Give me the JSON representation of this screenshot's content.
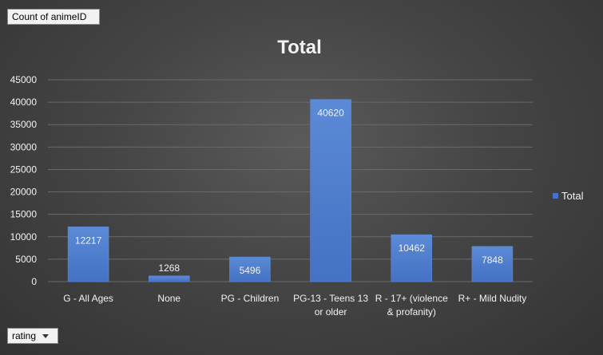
{
  "pivot": {
    "value_field": "Count of animeID",
    "axis_field": "rating"
  },
  "chart_data": {
    "type": "bar",
    "title": "Total",
    "xlabel": "",
    "ylabel": "",
    "ylim": [
      0,
      45000
    ],
    "yticks": [
      0,
      5000,
      10000,
      15000,
      20000,
      25000,
      30000,
      35000,
      40000,
      45000
    ],
    "categories": [
      "G - All Ages",
      "None",
      "PG - Children",
      "PG-13 - Teens 13 or older",
      "R - 17+ (violence & profanity)",
      "R+ - Mild Nudity"
    ],
    "series": [
      {
        "name": "Total",
        "values": [
          12217,
          1268,
          5496,
          40620,
          10462,
          7848
        ]
      }
    ],
    "grid": true,
    "legend_position": "right",
    "colors": {
      "bar": "#4472c4",
      "bar_light": "#5b8ad6",
      "text": "#f2f2f2",
      "grid": "#6a6a6a"
    }
  }
}
